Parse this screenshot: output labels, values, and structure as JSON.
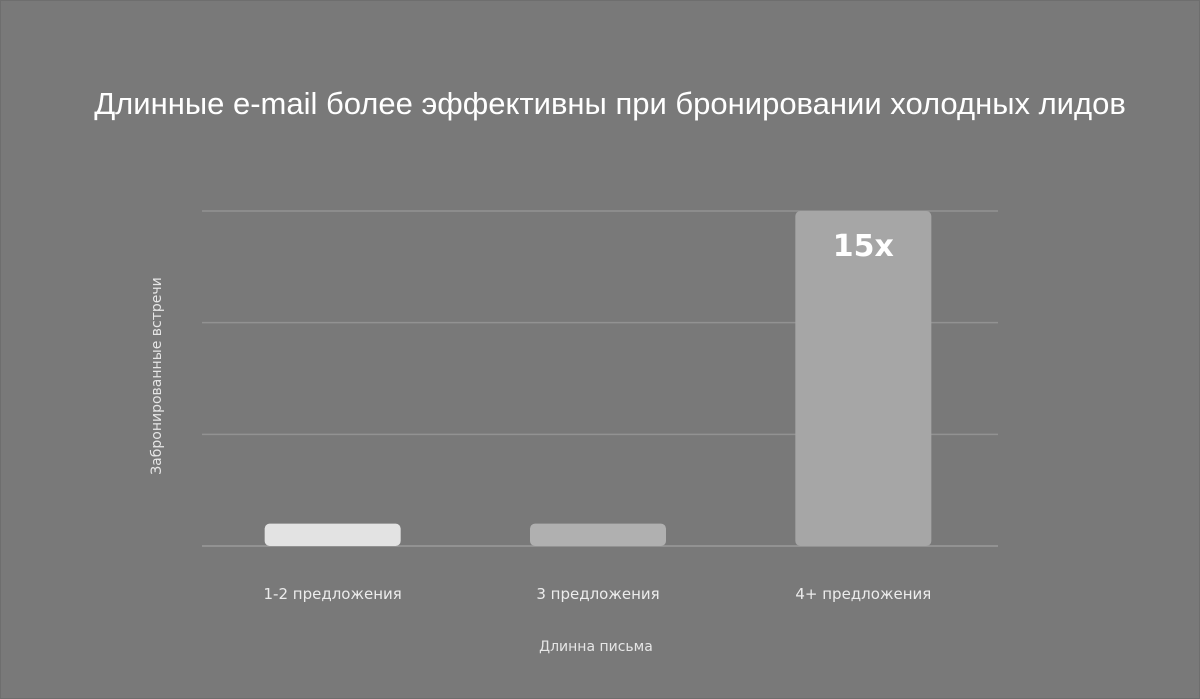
{
  "chart_data": {
    "type": "bar",
    "title": "Длинные e-mail более эффективны при бронировании холодных лидов",
    "xlabel": "Длинна письма",
    "ylabel": "Забронированные встречи",
    "categories": [
      "1-2 предложения",
      "3 предложения",
      "4+ предложения"
    ],
    "values": [
      1,
      1,
      15
    ],
    "data_labels": [
      "",
      "",
      "15x"
    ],
    "ylim": [
      0,
      15
    ],
    "grid": true,
    "bar_colors": [
      "#e3e3e3",
      "#b0b0b0",
      "#a6a6a6"
    ],
    "background": "#797979",
    "grid_color": "#929292"
  }
}
